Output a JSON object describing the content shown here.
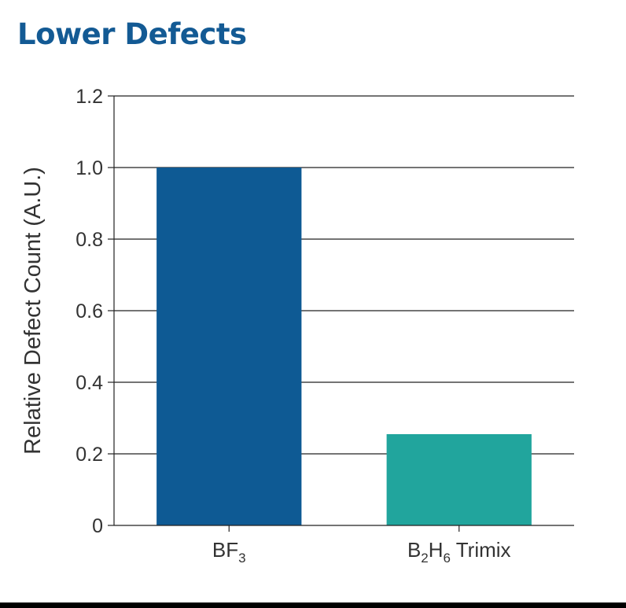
{
  "chart_data": {
    "type": "bar",
    "title": "Lower Defects",
    "ylabel": "Relative Defect Count (A.U.)",
    "xlabel": "",
    "categories": [
      {
        "base": "BF",
        "sub": "3",
        "tail": ""
      },
      {
        "parts": [
          {
            "text": "B",
            "sub": false
          },
          {
            "text": "2",
            "sub": true
          },
          {
            "text": "H",
            "sub": false
          },
          {
            "text": "6",
            "sub": true
          },
          {
            "text": " Trimix",
            "sub": false
          }
        ]
      }
    ],
    "values": [
      1.0,
      0.255
    ],
    "colors": [
      "#0e5a94",
      "#21a59d"
    ],
    "ylim": [
      0,
      1.2
    ],
    "yticks": [
      0,
      0.2,
      0.4,
      0.6,
      0.8,
      1.0,
      1.2
    ],
    "ytick_labels": [
      "0",
      "0.2",
      "0.4",
      "0.6",
      "0.8",
      "1.0",
      "1.2"
    ],
    "grid": true
  }
}
